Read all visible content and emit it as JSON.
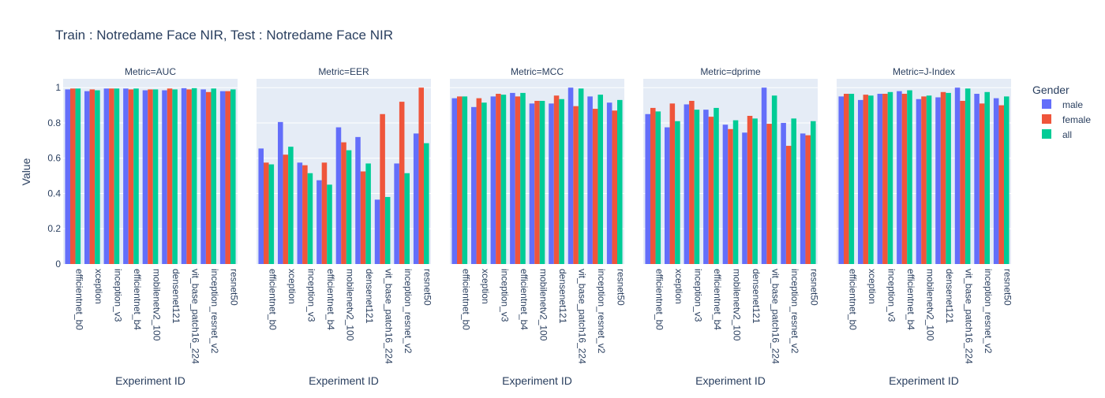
{
  "title": "Train : Notredame Face NIR, Test : Notredame Face NIR",
  "legend": {
    "title": "Gender",
    "items": [
      {
        "name": "male",
        "color": "#636efa"
      },
      {
        "name": "female",
        "color": "#ef553b"
      },
      {
        "name": "all",
        "color": "#00cc96"
      }
    ]
  },
  "chart_data": {
    "type": "bar",
    "barmode": "group",
    "ylabel": "Value",
    "xlabel": "Experiment ID",
    "ylim": [
      0,
      1.05
    ],
    "yticks": [
      0,
      0.2,
      0.4,
      0.6,
      0.8,
      1
    ],
    "ytick_labels": [
      "0",
      "0.2",
      "0.4",
      "0.6",
      "0.8",
      "1"
    ],
    "series_names": [
      "male",
      "female",
      "all"
    ],
    "panels": [
      {
        "title": "Metric=AUC",
        "categories": [
          "efficientnet_b0",
          "xception",
          "inception_v3",
          "efficientnet_b4",
          "mobilenetv2_100",
          "densenet121",
          "vit_base_patch16_224",
          "inception_resnet_v2",
          "resnet50"
        ],
        "series": [
          {
            "name": "male",
            "values": [
              0.99,
              0.98,
              0.995,
              0.995,
              0.985,
              0.985,
              0.997,
              0.99,
              0.98
            ]
          },
          {
            "name": "female",
            "values": [
              0.995,
              0.99,
              0.995,
              0.99,
              0.99,
              0.995,
              0.99,
              0.975,
              0.98
            ]
          },
          {
            "name": "all",
            "values": [
              0.995,
              0.985,
              0.995,
              0.995,
              0.99,
              0.99,
              0.997,
              0.995,
              0.99
            ]
          }
        ]
      },
      {
        "title": "Metric=EER",
        "categories": [
          "efficientnet_b0",
          "xception",
          "inception_v3",
          "efficientnet_b4",
          "mobilenetv2_100",
          "densenet121",
          "vit_base_patch16_224",
          "inception_resnet_v2",
          "resnet50"
        ],
        "series": [
          {
            "name": "male",
            "values": [
              0.655,
              0.805,
              0.575,
              0.475,
              0.775,
              0.72,
              0.365,
              0.57,
              0.74
            ]
          },
          {
            "name": "female",
            "values": [
              0.575,
              0.62,
              0.56,
              0.575,
              0.69,
              0.525,
              0.85,
              0.92,
              1.0
            ]
          },
          {
            "name": "all",
            "values": [
              0.565,
              0.665,
              0.515,
              0.45,
              0.645,
              0.57,
              0.38,
              0.515,
              0.685
            ]
          }
        ]
      },
      {
        "title": "Metric=MCC",
        "categories": [
          "efficientnet_b0",
          "xception",
          "inception_v3",
          "efficientnet_b4",
          "mobilenetv2_100",
          "densenet121",
          "vit_base_patch16_224",
          "inception_resnet_v2",
          "resnet50"
        ],
        "series": [
          {
            "name": "male",
            "values": [
              0.94,
              0.89,
              0.95,
              0.97,
              0.91,
              0.91,
              1.0,
              0.95,
              0.915
            ]
          },
          {
            "name": "female",
            "values": [
              0.95,
              0.94,
              0.965,
              0.95,
              0.925,
              0.955,
              0.895,
              0.88,
              0.87
            ]
          },
          {
            "name": "all",
            "values": [
              0.95,
              0.915,
              0.96,
              0.97,
              0.925,
              0.935,
              0.995,
              0.96,
              0.93
            ]
          }
        ]
      },
      {
        "title": "Metric=dprime",
        "categories": [
          "efficientnet_b0",
          "xception",
          "inception_v3",
          "efficientnet_b4",
          "mobilenetv2_100",
          "densenet121",
          "vit_base_patch16_224",
          "inception_resnet_v2",
          "resnet50"
        ],
        "series": [
          {
            "name": "male",
            "values": [
              0.85,
              0.775,
              0.905,
              0.875,
              0.79,
              0.745,
              1.0,
              0.8,
              0.74
            ]
          },
          {
            "name": "female",
            "values": [
              0.885,
              0.91,
              0.925,
              0.835,
              0.765,
              0.84,
              0.795,
              0.67,
              0.73
            ]
          },
          {
            "name": "all",
            "values": [
              0.865,
              0.81,
              0.875,
              0.885,
              0.815,
              0.825,
              0.955,
              0.825,
              0.81
            ]
          }
        ]
      },
      {
        "title": "Metric=J-Index",
        "categories": [
          "efficientnet_b0",
          "xception",
          "inception_v3",
          "efficientnet_b4",
          "mobilenetv2_100",
          "densenet121",
          "vit_base_patch16_224",
          "inception_resnet_v2",
          "resnet50"
        ],
        "series": [
          {
            "name": "male",
            "values": [
              0.95,
              0.93,
              0.965,
              0.98,
              0.935,
              0.945,
              1.0,
              0.965,
              0.94
            ]
          },
          {
            "name": "female",
            "values": [
              0.965,
              0.96,
              0.965,
              0.965,
              0.95,
              0.975,
              0.925,
              0.91,
              0.9
            ]
          },
          {
            "name": "all",
            "values": [
              0.965,
              0.955,
              0.975,
              0.985,
              0.955,
              0.97,
              0.995,
              0.975,
              0.95
            ]
          }
        ]
      }
    ]
  }
}
